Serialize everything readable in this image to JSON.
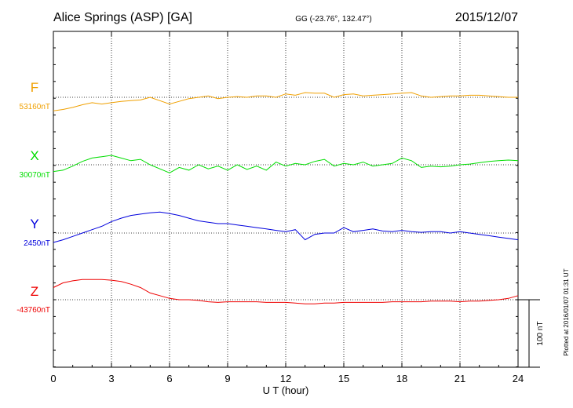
{
  "header": {
    "station": "Alice Springs (ASP)  [GA]",
    "coords": "GG (-23.76°, 132.47°)",
    "date": "2015/12/07"
  },
  "footer": {
    "plotted": "Plotted at 2016/01/07 01:31  UT"
  },
  "scale_bar": {
    "label": "100 nT",
    "value_nT": 100
  },
  "chart_data": {
    "type": "line",
    "xlabel": "U T (hour)",
    "xlim": [
      0,
      24
    ],
    "xticks": [
      0,
      3,
      6,
      9,
      12,
      15,
      18,
      21,
      24
    ],
    "grid": true,
    "series": [
      {
        "name": "F",
        "baseline_label": "53160nT",
        "baseline_nT": 53160,
        "color": "#f0a000",
        "x": [
          0,
          0.5,
          1,
          1.5,
          2,
          2.5,
          3,
          3.5,
          4,
          4.5,
          5,
          5.5,
          6,
          6.5,
          7,
          7.5,
          8,
          8.5,
          9,
          9.5,
          10,
          10.5,
          11,
          11.5,
          12,
          12.5,
          13,
          13.5,
          14,
          14.5,
          15,
          15.5,
          16,
          16.5,
          17,
          17.5,
          18,
          18.5,
          19,
          19.5,
          20,
          20.5,
          21,
          21.5,
          22,
          22.5,
          23,
          23.5,
          24
        ],
        "values": [
          53140,
          53142,
          53145,
          53149,
          53152,
          53150,
          53152,
          53154,
          53155,
          53156,
          53160,
          53155,
          53150,
          53154,
          53158,
          53160,
          53162,
          53158,
          53160,
          53161,
          53160,
          53162,
          53162,
          53160,
          53165,
          53163,
          53167,
          53166,
          53166,
          53160,
          53164,
          53165,
          53162,
          53163,
          53164,
          53165,
          53166,
          53167,
          53162,
          53160,
          53161,
          53162,
          53162,
          53163,
          53163,
          53162,
          53161,
          53160,
          53160
        ]
      },
      {
        "name": "X",
        "baseline_label": "30070nT",
        "baseline_nT": 30070,
        "color": "#00dd00",
        "x": [
          0,
          0.5,
          1,
          1.5,
          2,
          2.5,
          3,
          3.5,
          4,
          4.5,
          5,
          5.5,
          6,
          6.5,
          7,
          7.5,
          8,
          8.5,
          9,
          9.5,
          10,
          10.5,
          11,
          11.5,
          12,
          12.5,
          13,
          13.5,
          14,
          14.5,
          15,
          15.5,
          16,
          16.5,
          17,
          17.5,
          18,
          18.5,
          19,
          19.5,
          20,
          20.5,
          21,
          21.5,
          22,
          22.5,
          23,
          23.5,
          24
        ],
        "values": [
          30060,
          30062,
          30068,
          30075,
          30080,
          30082,
          30084,
          30080,
          30076,
          30078,
          30070,
          30064,
          30058,
          30066,
          30062,
          30070,
          30064,
          30068,
          30062,
          30070,
          30063,
          30068,
          30062,
          30074,
          30068,
          30072,
          30070,
          30075,
          30078,
          30068,
          30072,
          30070,
          30074,
          30068,
          30070,
          30072,
          30080,
          30076,
          30066,
          30068,
          30067,
          30068,
          30070,
          30071,
          30073,
          30075,
          30076,
          30077,
          30076
        ]
      },
      {
        "name": "Y",
        "baseline_label": "2450nT",
        "baseline_nT": 2450,
        "color": "#0000dd",
        "x": [
          0,
          0.5,
          1,
          1.5,
          2,
          2.5,
          3,
          3.5,
          4,
          4.5,
          5,
          5.5,
          6,
          6.5,
          7,
          7.5,
          8,
          8.5,
          9,
          9.5,
          10,
          10.5,
          11,
          11.5,
          12,
          12.5,
          13,
          13.5,
          14,
          14.5,
          15,
          15.5,
          16,
          16.5,
          17,
          17.5,
          18,
          18.5,
          19,
          19.5,
          20,
          20.5,
          21,
          21.5,
          22,
          22.5,
          23,
          23.5,
          24
        ],
        "values": [
          2436,
          2440,
          2445,
          2450,
          2455,
          2460,
          2467,
          2472,
          2476,
          2478,
          2480,
          2481,
          2479,
          2476,
          2472,
          2468,
          2466,
          2464,
          2464,
          2462,
          2460,
          2458,
          2456,
          2454,
          2452,
          2455,
          2440,
          2448,
          2450,
          2450,
          2458,
          2452,
          2454,
          2456,
          2453,
          2452,
          2454,
          2452,
          2451,
          2452,
          2452,
          2450,
          2452,
          2450,
          2448,
          2446,
          2444,
          2442,
          2440
        ]
      },
      {
        "name": "Z",
        "baseline_label": "-43760nT",
        "baseline_nT": -43760,
        "color": "#ee0000",
        "x": [
          0,
          0.5,
          1,
          1.5,
          2,
          2.5,
          3,
          3.5,
          4,
          4.5,
          5,
          5.5,
          6,
          6.5,
          7,
          7.5,
          8,
          8.5,
          9,
          9.5,
          10,
          10.5,
          11,
          11.5,
          12,
          12.5,
          13,
          13.5,
          14,
          14.5,
          15,
          15.5,
          16,
          16.5,
          17,
          17.5,
          18,
          18.5,
          19,
          19.5,
          20,
          20.5,
          21,
          21.5,
          22,
          22.5,
          23,
          23.5,
          24
        ],
        "values": [
          -43742,
          -43735,
          -43732,
          -43730,
          -43730,
          -43730,
          -43731,
          -43733,
          -43737,
          -43742,
          -43750,
          -43754,
          -43758,
          -43760,
          -43760,
          -43761,
          -43763,
          -43764,
          -43763,
          -43763,
          -43763,
          -43763,
          -43764,
          -43764,
          -43764,
          -43765,
          -43766,
          -43766,
          -43765,
          -43765,
          -43764,
          -43764,
          -43764,
          -43764,
          -43764,
          -43763,
          -43763,
          -43763,
          -43763,
          -43762,
          -43762,
          -43762,
          -43763,
          -43762,
          -43762,
          -43761,
          -43760,
          -43758,
          -43754
        ]
      }
    ]
  }
}
